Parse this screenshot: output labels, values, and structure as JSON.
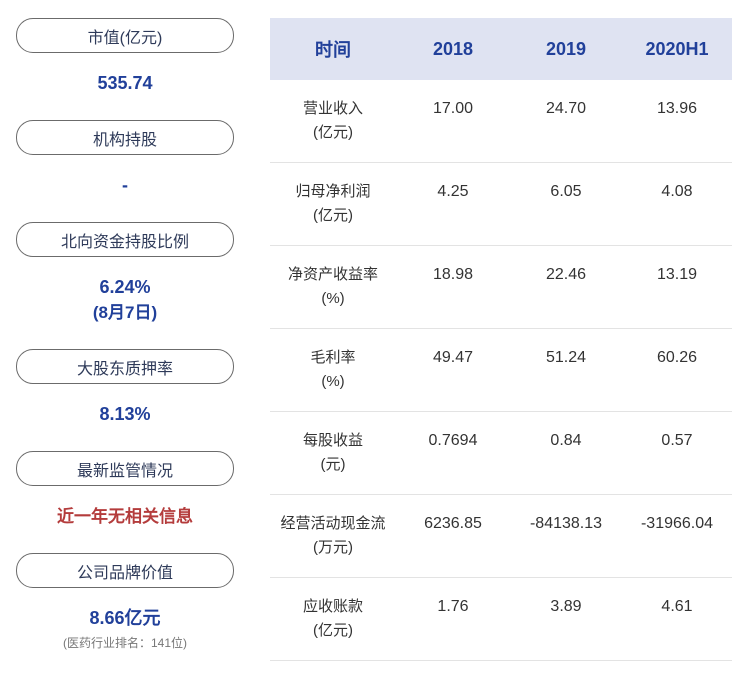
{
  "sidebar": {
    "items": [
      {
        "label": "市值(亿元)",
        "value": "535.74"
      },
      {
        "label": "机构持股",
        "value": "-"
      },
      {
        "label": "北向资金持股比例",
        "value": "6.24%",
        "note": "(8月7日)"
      },
      {
        "label": "大股东质押率",
        "value": "8.13%"
      },
      {
        "label": "最新监管情况",
        "value": "近一年无相关信息"
      },
      {
        "label": "公司品牌价值",
        "value": "8.66亿元",
        "note": "(医药行业排名：141位)"
      }
    ]
  },
  "table": {
    "headers": [
      "时间",
      "2018",
      "2019",
      "2020H1"
    ],
    "rows": [
      {
        "name": "营业收入",
        "unit": "(亿元)",
        "values": [
          "17.00",
          "24.70",
          "13.96"
        ]
      },
      {
        "name": "归母净利润",
        "unit": "(亿元)",
        "values": [
          "4.25",
          "6.05",
          "4.08"
        ]
      },
      {
        "name": "净资产收益率",
        "unit": "(%)",
        "values": [
          "18.98",
          "22.46",
          "13.19"
        ]
      },
      {
        "name": "毛利率",
        "unit": "(%)",
        "values": [
          "49.47",
          "51.24",
          "60.26"
        ]
      },
      {
        "name": "每股收益",
        "unit": "(元)",
        "values": [
          "0.7694",
          "0.84",
          "0.57"
        ]
      },
      {
        "name": "经营活动现金流",
        "unit": "(万元)",
        "values": [
          "6236.85",
          "-84138.13",
          "-31966.04"
        ]
      },
      {
        "name": "应收账款",
        "unit": "(亿元)",
        "values": [
          "1.76",
          "3.89",
          "4.61"
        ]
      }
    ]
  },
  "colors": {
    "accent_blue": "#21409a",
    "alert_red": "#b43c3c",
    "header_bg": "#dfe3f2",
    "pill_border": "#6b6b6b",
    "muted_gray": "#777777"
  }
}
